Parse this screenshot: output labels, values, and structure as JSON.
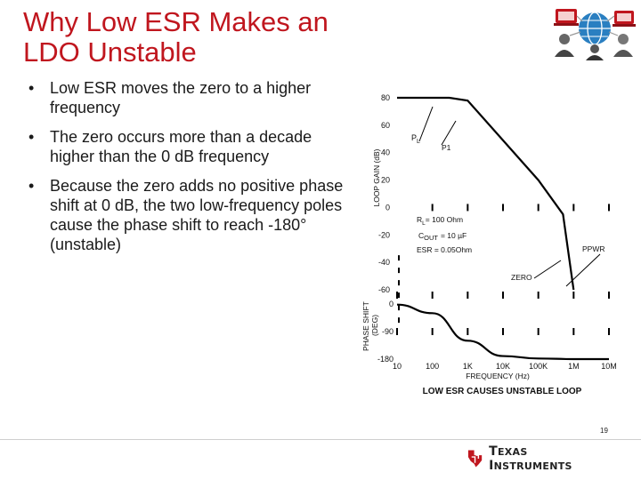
{
  "slide": {
    "title": "Why Low ESR Makes an LDO Unstable",
    "bullets": [
      "Low ESR moves the zero to a higher frequency",
      "The zero occurs more than a decade higher than the 0 dB frequency",
      "Because the zero adds no positive phase shift at 0 dB, the two low-frequency poles cause the phase shift to reach -180° (unstable)"
    ],
    "slide_number": "19",
    "footer_brand": "Texas Instruments"
  },
  "chart_data": {
    "type": "line",
    "gain": {
      "ylabel": "LOOP GAIN (dB)",
      "ticks": [
        "80",
        "60",
        "40",
        "20",
        "0",
        "-20",
        "-40",
        "-60"
      ],
      "ylim": [
        -60,
        80
      ]
    },
    "phase": {
      "ylabel": "PHASE SHIFT (DEG)",
      "ticks": [
        "0",
        "-90",
        "-180"
      ],
      "ylim": [
        -180,
        0
      ]
    },
    "xaxis": {
      "label": "FREQUENCY (Hz)",
      "ticks": [
        "10",
        "100",
        "1K",
        "10K",
        "100K",
        "1M",
        "10M"
      ],
      "scale": "log",
      "xlim": [
        10,
        10000000
      ]
    },
    "series": [
      {
        "values_x": [
          10,
          300,
          1000,
          100000,
          500000,
          1000000
        ],
        "values_y": [
          80,
          80,
          78,
          20,
          -5,
          -60
        ]
      },
      {
        "values_x": [
          10,
          100,
          1000,
          10000,
          100000,
          1000000,
          10000000
        ],
        "values_y": [
          -2,
          -30,
          -120,
          -170,
          -178,
          -180,
          -180
        ]
      }
    ],
    "annotations": {
      "pole_l": "P",
      "pole_l_sub": "L",
      "pole_1": "P1",
      "rl": "R",
      "rl_sub": "L",
      "rl_value": "= 100 Ohm",
      "cout": "C",
      "cout_sub": "OUT",
      "cout_value": "= 10 µF",
      "esr": "ESR = 0.05Ohm",
      "ppwr": "PPWR",
      "zero": "ZERO"
    },
    "caption": "LOW ESR CAUSES UNSTABLE LOOP"
  }
}
